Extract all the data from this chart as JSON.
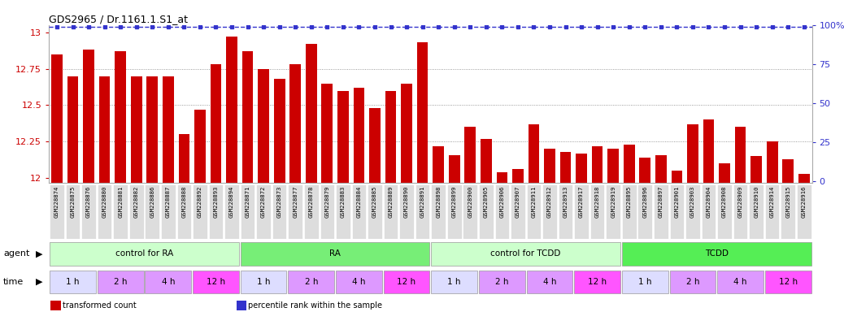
{
  "title": "GDS2965 / Dr.1161.1.S1_at",
  "bar_color": "#cc0000",
  "percentile_color": "#3333cc",
  "ylim_left": [
    11.97,
    13.05
  ],
  "yticks_left": [
    12,
    12.25,
    12.5,
    12.75,
    13
  ],
  "ytick_labels_left": [
    "12",
    "12.25",
    "12.5",
    "12.75",
    "13"
  ],
  "yticks_right": [
    0,
    25,
    50,
    75,
    100
  ],
  "ytick_labels_right": [
    "0",
    "25",
    "50",
    "75",
    "100%"
  ],
  "sample_ids": [
    "GSM228874",
    "GSM228875",
    "GSM228876",
    "GSM228880",
    "GSM228881",
    "GSM228882",
    "GSM228886",
    "GSM228887",
    "GSM228888",
    "GSM228892",
    "GSM228893",
    "GSM228894",
    "GSM228871",
    "GSM228872",
    "GSM228873",
    "GSM228877",
    "GSM228878",
    "GSM228879",
    "GSM228883",
    "GSM228884",
    "GSM228885",
    "GSM228889",
    "GSM228890",
    "GSM228891",
    "GSM228898",
    "GSM228899",
    "GSM228900",
    "GSM228905",
    "GSM228906",
    "GSM228907",
    "GSM228911",
    "GSM228912",
    "GSM228913",
    "GSM228917",
    "GSM228918",
    "GSM228919",
    "GSM228895",
    "GSM228896",
    "GSM228897",
    "GSM228901",
    "GSM228903",
    "GSM228904",
    "GSM228908",
    "GSM228909",
    "GSM228910",
    "GSM228914",
    "GSM228915",
    "GSM228916"
  ],
  "bar_values": [
    12.85,
    12.7,
    12.88,
    12.7,
    12.87,
    12.7,
    12.7,
    12.7,
    12.3,
    12.47,
    12.78,
    12.97,
    12.87,
    12.75,
    12.68,
    12.78,
    12.92,
    12.65,
    12.6,
    12.62,
    12.48,
    12.6,
    12.65,
    12.93,
    12.22,
    12.16,
    12.35,
    12.27,
    12.04,
    12.06,
    12.37,
    12.2,
    12.18,
    12.17,
    12.22,
    12.2,
    12.23,
    12.14,
    12.16,
    12.05,
    12.37,
    12.4,
    12.1,
    12.35,
    12.15,
    12.25,
    12.13,
    12.03
  ],
  "percentile_values": [
    99,
    99,
    99,
    99,
    99,
    99,
    99,
    99,
    99,
    99,
    99,
    99,
    99,
    99,
    99,
    99,
    99,
    99,
    99,
    99,
    99,
    99,
    99,
    99,
    99,
    99,
    99,
    99,
    99,
    99,
    99,
    99,
    99,
    99,
    99,
    99,
    99,
    99,
    99,
    99,
    99,
    99,
    99,
    99,
    99,
    99,
    99,
    99
  ],
  "agent_groups": [
    {
      "label": "control for RA",
      "color": "#ccffcc",
      "n": 12
    },
    {
      "label": "RA",
      "color": "#77ee77",
      "n": 12
    },
    {
      "label": "control for TCDD",
      "color": "#ccffcc",
      "n": 12
    },
    {
      "label": "TCDD",
      "color": "#55ee55",
      "n": 12
    }
  ],
  "time_colors": [
    "#ddddff",
    "#dd99ff",
    "#dd99ff",
    "#ff55ff",
    "#ddddff",
    "#dd99ff",
    "#dd99ff",
    "#ff55ff",
    "#ddddff",
    "#dd99ff",
    "#dd99ff",
    "#ff55ff",
    "#ddddff",
    "#dd99ff",
    "#dd99ff",
    "#ff55ff"
  ],
  "time_labels": [
    "1 h",
    "2 h",
    "4 h",
    "12 h",
    "1 h",
    "2 h",
    "4 h",
    "12 h",
    "1 h",
    "2 h",
    "4 h",
    "12 h",
    "1 h",
    "2 h",
    "4 h",
    "12 h"
  ],
  "legend_items": [
    {
      "color": "#cc0000",
      "label": "transformed count"
    },
    {
      "color": "#3333cc",
      "label": "percentile rank within the sample"
    }
  ],
  "xtick_bg": "#dddddd",
  "grid_lines": [
    12.25,
    12.5,
    12.75
  ]
}
